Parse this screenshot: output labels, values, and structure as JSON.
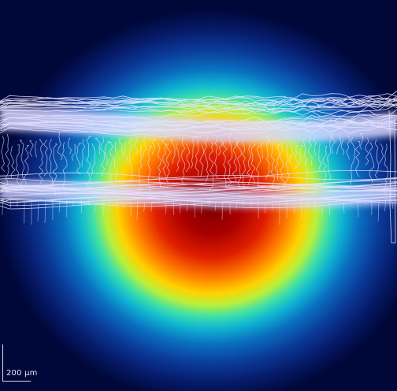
{
  "scale_bar": {
    "label": "200 μm"
  },
  "colors": {
    "background": "#00083a",
    "heat_hot": "#7a0000",
    "heat_mid": "#ffd200",
    "heat_cool": "#0a3a98",
    "contour": "#e8e4ff",
    "scale_bar": "#d8d8e8"
  }
}
